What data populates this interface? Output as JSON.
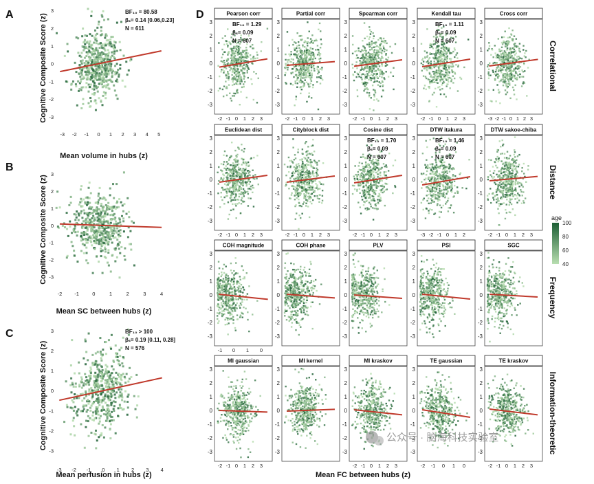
{
  "colors": {
    "fit_line": "#c0392b",
    "point_light": "#b8deb0",
    "point_dark": "#1c5e34",
    "frame": "#444444"
  },
  "watermark": {
    "icon": "wechat-logo",
    "text": "公众号 · 脑海科技实验室"
  },
  "chart_data": [
    {
      "id": "A",
      "type": "scatter",
      "panel_label": "A",
      "xlabel": "Mean volume in hubs (z)",
      "ylabel": "Cognitive Composite Score (z)",
      "xlim": [
        -3.5,
        5.5
      ],
      "ylim": [
        -3.7,
        3.2
      ],
      "xticks": [
        -3,
        -2,
        -1,
        0,
        1,
        2,
        3,
        4,
        5
      ],
      "yticks": [
        -3,
        -2,
        -1,
        0,
        1,
        2,
        3
      ],
      "fit_line": {
        "x": [
          -3.2,
          5.2
        ],
        "y": [
          -0.45,
          0.72
        ]
      },
      "annotation": [
        "BF₁₀ = 80.58",
        "βₛ= 0.14 [0.06,0.23]",
        "N = 611"
      ]
    },
    {
      "id": "B",
      "type": "scatter",
      "panel_label": "B",
      "xlabel": "Mean SC between hubs (z)",
      "ylabel": "Cognitive Composite Score (z)",
      "xlim": [
        -2.2,
        4.2
      ],
      "ylim": [
        -3.7,
        3.2
      ],
      "xticks": [
        -2,
        -1,
        0,
        1,
        2,
        3,
        4
      ],
      "yticks": [
        -3,
        -2,
        -1,
        0,
        1,
        2,
        3
      ],
      "fit_line": {
        "x": [
          -2.0,
          4.0
        ],
        "y": [
          0.08,
          -0.12
        ]
      },
      "annotation": []
    },
    {
      "id": "C",
      "type": "scatter",
      "panel_label": "C",
      "xlabel": "Mean perfusion in hubs (z)",
      "ylabel": "Cognitive Composite Score (z)",
      "xlim": [
        -3.2,
        4.2
      ],
      "ylim": [
        -3.7,
        3.2
      ],
      "xticks": [
        -3,
        -2,
        -1,
        0,
        1,
        2,
        3,
        4
      ],
      "yticks": [
        -3,
        -2,
        -1,
        0,
        1,
        2,
        3
      ],
      "fit_line": {
        "x": [
          -3.0,
          4.0
        ],
        "y": [
          -0.48,
          0.64
        ]
      },
      "annotation": [
        "BF₁₀ > 100",
        "βₛ= 0.19 [0.11, 0.28]",
        "N = 576"
      ]
    },
    {
      "id": "D",
      "type": "scatter",
      "panel_label": "D",
      "xlabel": "Mean FC between hubs (z)",
      "ylim": [
        -3.7,
        3.2
      ],
      "yticks": [
        -3,
        -2,
        -1,
        0,
        1,
        2,
        3
      ],
      "legend": {
        "title": "age",
        "min": 40,
        "max": 100,
        "ticks": [
          100,
          80,
          60,
          40
        ],
        "placement": "right"
      },
      "rows": [
        {
          "strip": "Correlational",
          "facets": [
            {
              "title": "Pearson corr",
              "xticks": [
                "-2",
                "-1",
                "0",
                "1",
                "2",
                "3"
              ],
              "xrange": [
                -2,
                3
              ],
              "fit_line": {
                "y": [
                  -0.28,
                  0.32
                ]
              },
              "annotation": [
                "BF₁₀ = 1.29",
                "βₛ= 0.09",
                "N = 607"
              ]
            },
            {
              "title": "Partial corr",
              "xticks": [
                "-2",
                "-1",
                "0",
                "1",
                "2",
                "3"
              ],
              "xrange": [
                -2,
                3
              ],
              "fit_line": {
                "y": [
                  -0.15,
                  0.12
                ]
              },
              "annotation": []
            },
            {
              "title": "Spearman corr",
              "xticks": [
                "-2",
                "-1",
                "0",
                "1",
                "2",
                "3"
              ],
              "xrange": [
                -2,
                3
              ],
              "fit_line": {
                "y": [
                  -0.22,
                  0.25
                ]
              },
              "annotation": []
            },
            {
              "title": "Kendall tau",
              "xticks": [
                "-2",
                "-1",
                "0",
                "1",
                "2",
                "3"
              ],
              "xrange": [
                -2,
                3
              ],
              "fit_line": {
                "y": [
                  -0.25,
                  0.3
                ]
              },
              "annotation": [
                "BF₁₀ = 1.11",
                "βₛ= 0.09",
                "N = 607"
              ]
            },
            {
              "title": "Cross corr",
              "xticks": [
                "-3",
                "-2",
                "-1",
                "0",
                "1",
                "2",
                "3"
              ],
              "xrange": [
                -3,
                3
              ],
              "fit_line": {
                "y": [
                  -0.2,
                  0.28
                ]
              },
              "annotation": []
            }
          ]
        },
        {
          "strip": "Distance",
          "facets": [
            {
              "title": "Euclidean dist",
              "xticks": [
                "-2",
                "-1",
                "0",
                "1",
                "2",
                "3"
              ],
              "xrange": [
                -2,
                3
              ],
              "fit_line": {
                "y": [
                  -0.2,
                  0.3
                ]
              },
              "annotation": []
            },
            {
              "title": "Cityblock dist",
              "xticks": [
                "-2",
                "-1",
                "0",
                "1",
                "2",
                "3"
              ],
              "xrange": [
                -2,
                3
              ],
              "fit_line": {
                "y": [
                  -0.2,
                  0.25
                ]
              },
              "annotation": []
            },
            {
              "title": "Cosine dist",
              "xticks": [
                "-2",
                "-1",
                "0",
                "1",
                "2",
                "3"
              ],
              "xrange": [
                -2,
                3
              ],
              "fit_line": {
                "y": [
                  -0.25,
                  0.3
                ]
              },
              "annotation": [
                "BF₁₀ = 1.70",
                "βₛ= 0.09",
                "N = 607"
              ]
            },
            {
              "title": "DTW itakura",
              "xticks": [
                "-3",
                "-2",
                "-1",
                "0",
                "1",
                "2"
              ],
              "xrange": [
                -3,
                2
              ],
              "fit_line": {
                "y": [
                  -0.4,
                  0.2
                ]
              },
              "annotation": [
                "BF₁₀ = 1.46",
                "βₛ= 0.09",
                "N = 607"
              ]
            },
            {
              "title": "DTW sakoe-chiba",
              "xticks": [
                "-2",
                "-1",
                "0",
                "1",
                "2",
                "3"
              ],
              "xrange": [
                -2,
                3
              ],
              "fit_line": {
                "y": [
                  -0.1,
                  0.22
                ]
              },
              "annotation": []
            }
          ]
        },
        {
          "strip": "Frequency",
          "facets": [
            {
              "title": "COH magnitude",
              "xticks": [
                "-1",
                "0",
                "1",
                "0"
              ],
              "xrange": [
                -1.5,
                5
              ],
              "fit_line": {
                "y": [
                  0.05,
                  -0.32
                ]
              },
              "annotation": []
            },
            {
              "title": "COH phase",
              "xticks": [],
              "xrange": [
                -2,
                3
              ],
              "fit_line": {
                "y": [
                  0.05,
                  -0.22
                ]
              },
              "annotation": []
            },
            {
              "title": "PLV",
              "xticks": [],
              "xrange": [
                -2,
                3
              ],
              "fit_line": {
                "y": [
                  0.0,
                  -0.25
                ]
              },
              "annotation": []
            },
            {
              "title": "PSI",
              "xticks": [],
              "xrange": [
                -2,
                3
              ],
              "fit_line": {
                "y": [
                  0.05,
                  -0.3
                ]
              },
              "annotation": []
            },
            {
              "title": "SGC",
              "xticks": [],
              "xrange": [
                -2,
                3
              ],
              "fit_line": {
                "y": [
                  0.05,
                  -0.15
                ]
              },
              "annotation": []
            }
          ]
        },
        {
          "strip": "Information-theoretic",
          "facets": [
            {
              "title": "MI gaussian",
              "xticks": [
                "-2",
                "-1",
                "0",
                "1",
                "2",
                "3"
              ],
              "xrange": [
                -2,
                3
              ],
              "fit_line": {
                "y": [
                  0.0,
                  -0.12
                ]
              },
              "annotation": []
            },
            {
              "title": "MI kernel",
              "xticks": [],
              "xrange": [
                -2,
                3
              ],
              "fit_line": {
                "y": [
                  -0.05,
                  0.08
                ]
              },
              "annotation": []
            },
            {
              "title": "MI kraskov",
              "xticks": [
                "-2",
                "-1",
                "0",
                "1",
                "2",
                "3"
              ],
              "xrange": [
                -2,
                3
              ],
              "fit_line": {
                "y": [
                  0.05,
                  -0.32
                ]
              },
              "annotation": []
            },
            {
              "title": "TE gaussian",
              "xticks": [
                "-2",
                "-1",
                "0",
                "1",
                "0"
              ],
              "xrange": [
                -2,
                3
              ],
              "fit_line": {
                "y": [
                  0.05,
                  -0.5
                ]
              },
              "annotation": []
            },
            {
              "title": "TE kraskov",
              "xticks": [
                "-2",
                "-1",
                "0",
                "1",
                "2",
                "3"
              ],
              "xrange": [
                -2,
                3
              ],
              "fit_line": {
                "y": [
                  0.1,
                  -0.32
                ]
              },
              "annotation": []
            }
          ]
        }
      ]
    }
  ]
}
